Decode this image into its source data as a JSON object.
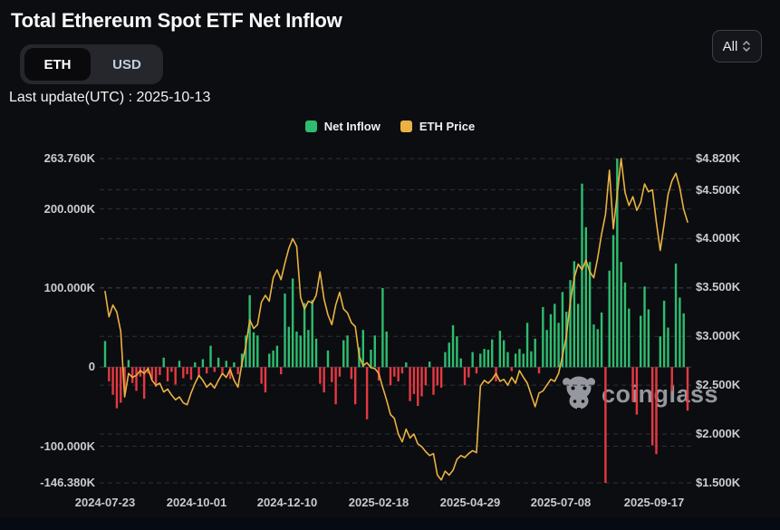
{
  "header": {
    "title": "Total Ethereum Spot ETF Net Inflow",
    "unit_toggle": {
      "options": [
        "ETH",
        "USD"
      ],
      "selected": "ETH"
    },
    "range_select": {
      "value": "All"
    },
    "last_update": "Last update(UTC) : 2025-10-13"
  },
  "legend": [
    {
      "label": "Net Inflow",
      "color": "#2ebd70"
    },
    {
      "label": "ETH Price",
      "color": "#e9b242"
    }
  ],
  "watermark": {
    "text": "coinglass",
    "icon": "coinglass-bull-icon"
  },
  "colors": {
    "background": "#0c0d10",
    "bar_positive": "#2ebd70",
    "bar_negative": "#e53943",
    "price_line": "#e9b242",
    "grid": "#2e3137",
    "zero_line": "#33363c",
    "axis_text": "#cbccd0"
  },
  "chart_data": {
    "type": "bar+line",
    "title": "Total Ethereum Spot ETF Net Inflow",
    "start_date": "2024-07-23",
    "end_date": "2025-10-13",
    "interval_days": 3,
    "left_axis": {
      "name": "Net Inflow (ETH)",
      "ticks": [
        "263.760K",
        "200.000K",
        "100.000K",
        "0",
        "-100.000K",
        "-146.380K"
      ],
      "tick_values": [
        263.76,
        200,
        100,
        0,
        -100,
        -146.38
      ],
      "min": -146.38,
      "max": 263.76
    },
    "right_axis": {
      "name": "ETH Price",
      "ticks": [
        "$4.820K",
        "$4.500K",
        "$4.000K",
        "$3.500K",
        "$3.000K",
        "$2.500K",
        "$2.000K",
        "$1.500K"
      ],
      "tick_values": [
        4.82,
        4.5,
        4.0,
        3.5,
        3.0,
        2.5,
        2.0,
        1.5
      ],
      "min": 1.5,
      "max": 4.82
    },
    "x_ticks": [
      "2024-07-23",
      "2024-10-01",
      "2024-12-10",
      "2025-02-18",
      "2025-04-29",
      "2025-07-08",
      "2025-09-17"
    ],
    "grid": true,
    "legend_position": "top",
    "series": [
      {
        "name": "Net Inflow",
        "type": "bar",
        "unit": "K ETH",
        "values": [
          33,
          -18,
          -35,
          -52,
          -45,
          -28,
          9,
          -20,
          -30,
          -12,
          -40,
          -8,
          -15,
          -25,
          -10,
          12,
          -18,
          -6,
          -22,
          8,
          -14,
          -9,
          -16,
          6,
          -12,
          10,
          -8,
          27,
          -6,
          12,
          -10,
          8,
          -15,
          6,
          -9,
          17,
          40,
          91,
          44,
          40,
          -21,
          -32,
          17,
          21,
          27,
          -9,
          93,
          51,
          112,
          45,
          40,
          81,
          47,
          85,
          36,
          -21,
          -32,
          21,
          -19,
          -47,
          -12,
          34,
          40,
          -15,
          -47,
          25,
          47,
          -66,
          22,
          40,
          -17,
          100,
          45,
          -23,
          -12,
          -18,
          -8,
          6,
          -43,
          -34,
          -49,
          -37,
          -23,
          7,
          -35,
          -23,
          -26,
          19,
          31,
          53,
          39,
          11,
          -23,
          -13,
          19,
          -8,
          17,
          23,
          22,
          35,
          -18,
          46,
          34,
          19,
          -5,
          17,
          23,
          17,
          56,
          20,
          36,
          -8,
          76,
          47,
          67,
          80,
          56,
          95,
          70,
          110,
          134,
          80,
          232,
          177,
          133,
          54,
          48,
          69,
          -146.38,
          122,
          167,
          263.76,
          133,
          107,
          74,
          -44,
          -60,
          65,
          102,
          73,
          -99,
          -110,
          39,
          84,
          50,
          -30,
          131,
          88,
          68,
          -55
        ]
      },
      {
        "name": "ETH Price",
        "type": "line",
        "unit": "$K",
        "values": [
          3.46,
          3.2,
          3.32,
          3.25,
          3.05,
          2.38,
          2.62,
          2.58,
          2.6,
          2.65,
          2.62,
          2.67,
          2.55,
          2.5,
          2.52,
          2.43,
          2.46,
          2.4,
          2.35,
          2.38,
          2.32,
          2.3,
          2.42,
          2.52,
          2.6,
          2.55,
          2.48,
          2.52,
          2.47,
          2.55,
          2.62,
          2.58,
          2.66,
          2.55,
          2.48,
          2.72,
          2.9,
          3.17,
          3.08,
          3.12,
          3.35,
          3.42,
          3.36,
          3.6,
          3.68,
          3.58,
          3.75,
          3.9,
          4.0,
          3.92,
          3.4,
          3.28,
          3.36,
          3.34,
          3.42,
          3.66,
          3.38,
          3.22,
          3.12,
          3.32,
          3.45,
          3.28,
          3.24,
          3.14,
          3.1,
          2.8,
          2.7,
          2.73,
          2.68,
          2.67,
          2.62,
          2.48,
          2.35,
          2.2,
          2.16,
          2.0,
          1.92,
          2.05,
          1.96,
          2.0,
          1.9,
          1.87,
          1.82,
          1.78,
          1.8,
          1.58,
          1.53,
          1.62,
          1.58,
          1.63,
          1.74,
          1.78,
          1.76,
          1.8,
          1.83,
          1.81,
          2.49,
          2.55,
          2.52,
          2.56,
          2.62,
          2.54,
          2.56,
          2.5,
          2.58,
          2.52,
          2.65,
          2.58,
          2.52,
          2.4,
          2.28,
          2.42,
          2.44,
          2.5,
          2.56,
          2.54,
          2.62,
          2.8,
          3.0,
          3.35,
          3.6,
          3.74,
          3.68,
          3.78,
          3.66,
          3.6,
          3.8,
          4.05,
          4.25,
          4.7,
          4.1,
          4.45,
          4.82,
          4.47,
          4.34,
          4.43,
          4.29,
          4.37,
          4.56,
          4.48,
          4.5,
          4.17,
          3.88,
          4.15,
          4.45,
          4.59,
          4.67,
          4.52,
          4.3,
          4.17
        ]
      }
    ]
  }
}
